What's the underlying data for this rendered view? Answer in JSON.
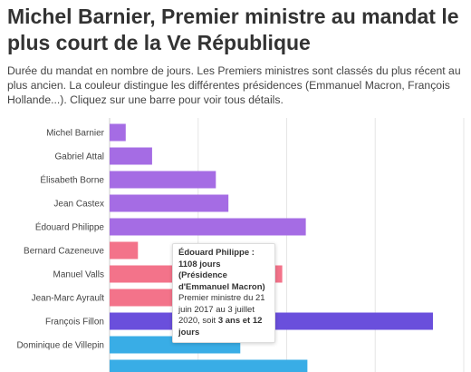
{
  "header": {
    "title": "Michel Barnier, Premier ministre au mandat le plus court de la Ve République",
    "subtitle": "Durée du mandat en nombre de jours. Les Premiers ministres sont classés du plus récent au plus ancien. La couleur distingue les différentes présidences (Emmanuel Macron, François Hollande...). Cliquez sur une barre pour voir tous détails."
  },
  "colors": {
    "macron": "#a56ce4",
    "hollande": "#f3738a",
    "sarkozy": "#6a4fdc",
    "chirac": "#39ade6",
    "grid": "#e6e6e6",
    "label": "#444444"
  },
  "chart_data": {
    "type": "bar",
    "orientation": "horizontal",
    "categories": [
      "Michel Barnier",
      "Gabriel Attal",
      "Élisabeth Borne",
      "Jean Castex",
      "Édouard Philippe",
      "Bernard Cazeneuve",
      "Manuel Valls",
      "Jean-Marc Ayrault",
      "François Fillon",
      "Dominique de Villepin",
      ""
    ],
    "values": [
      91,
      240,
      600,
      671,
      1108,
      160,
      975,
      690,
      1826,
      738,
      1117
    ],
    "presidency": [
      "macron",
      "macron",
      "macron",
      "macron",
      "macron",
      "hollande",
      "hollande",
      "hollande",
      "sarkozy",
      "chirac",
      "chirac"
    ],
    "xlim": [
      0,
      2000
    ],
    "grid": true
  },
  "tooltip": {
    "head": "Édouard Philippe : 1108 jours (Présidence d'Emmanuel Macron)",
    "body_prefix": "Premier ministre du 21 juin 2017 au 3 juillet 2020, soit ",
    "body_bold": "3 ans et 12 jours"
  }
}
